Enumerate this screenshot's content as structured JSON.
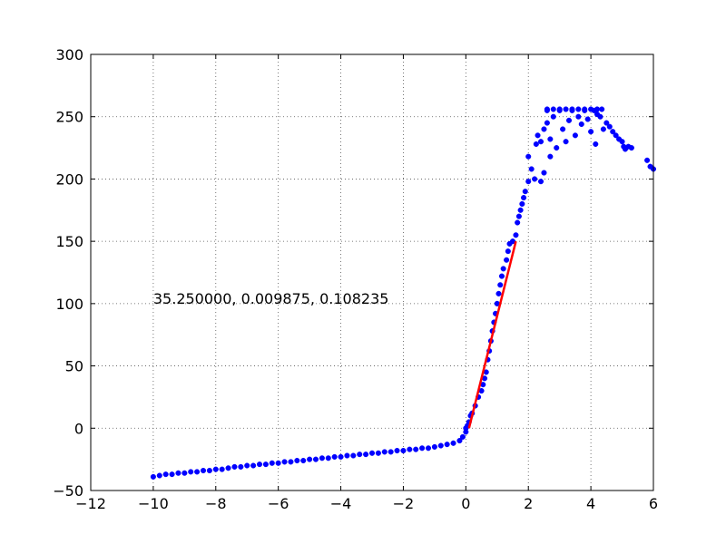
{
  "chart_data": {
    "type": "scatter",
    "title": "",
    "xlabel": "",
    "ylabel": "",
    "xlim": [
      -12,
      6
    ],
    "ylim": [
      -50,
      300
    ],
    "x_ticks": [
      -12,
      -10,
      -8,
      -6,
      -4,
      -2,
      0,
      2,
      4,
      6
    ],
    "y_ticks": [
      -50,
      0,
      50,
      100,
      150,
      200,
      250,
      300
    ],
    "x_tick_labels": [
      "−12",
      "−10",
      "−8",
      "−6",
      "−4",
      "−2",
      "0",
      "2",
      "4",
      "6"
    ],
    "y_tick_labels": [
      "−50",
      "0",
      "50",
      "100",
      "150",
      "200",
      "250",
      "300"
    ],
    "grid": true,
    "annotation": {
      "text": "35.250000, 0.009875, 0.108235",
      "x": -10,
      "y": 100
    },
    "colors": {
      "points": "#0000ff",
      "fit_line": "#ff0000",
      "grid": "#555555"
    },
    "series": [
      {
        "kind": "points",
        "points": [
          [
            -10.0,
            -39
          ],
          [
            -9.8,
            -38
          ],
          [
            -9.6,
            -37
          ],
          [
            -9.4,
            -37
          ],
          [
            -9.2,
            -36
          ],
          [
            -9.0,
            -36
          ],
          [
            -8.8,
            -35
          ],
          [
            -8.6,
            -35
          ],
          [
            -8.4,
            -34
          ],
          [
            -8.2,
            -34
          ],
          [
            -8.0,
            -33
          ],
          [
            -7.8,
            -33
          ],
          [
            -7.6,
            -32
          ],
          [
            -7.4,
            -31
          ],
          [
            -7.2,
            -31
          ],
          [
            -7.0,
            -30
          ],
          [
            -6.8,
            -30
          ],
          [
            -6.6,
            -29
          ],
          [
            -6.4,
            -29
          ],
          [
            -6.2,
            -28
          ],
          [
            -6.0,
            -28
          ],
          [
            -5.8,
            -27
          ],
          [
            -5.6,
            -27
          ],
          [
            -5.4,
            -26
          ],
          [
            -5.2,
            -26
          ],
          [
            -5.0,
            -25
          ],
          [
            -4.8,
            -25
          ],
          [
            -4.6,
            -24
          ],
          [
            -4.4,
            -24
          ],
          [
            -4.2,
            -23
          ],
          [
            -4.0,
            -23
          ],
          [
            -3.8,
            -22
          ],
          [
            -3.6,
            -22
          ],
          [
            -3.4,
            -21
          ],
          [
            -3.2,
            -21
          ],
          [
            -3.0,
            -20
          ],
          [
            -2.8,
            -20
          ],
          [
            -2.6,
            -19
          ],
          [
            -2.4,
            -19
          ],
          [
            -2.2,
            -18
          ],
          [
            -2.0,
            -18
          ],
          [
            -1.8,
            -17
          ],
          [
            -1.6,
            -17
          ],
          [
            -1.4,
            -16
          ],
          [
            -1.2,
            -16
          ],
          [
            -1.0,
            -15
          ],
          [
            -0.8,
            -14
          ],
          [
            -0.6,
            -13
          ],
          [
            -0.4,
            -12
          ],
          [
            -0.2,
            -10
          ],
          [
            -0.1,
            -7
          ],
          [
            0.0,
            -3
          ],
          [
            0.0,
            0
          ],
          [
            0.05,
            2
          ],
          [
            0.1,
            5
          ],
          [
            0.15,
            10
          ],
          [
            0.2,
            12
          ],
          [
            0.3,
            18
          ],
          [
            0.4,
            25
          ],
          [
            0.5,
            30
          ],
          [
            0.55,
            35
          ],
          [
            0.6,
            40
          ],
          [
            0.65,
            45
          ],
          [
            0.7,
            55
          ],
          [
            0.75,
            62
          ],
          [
            0.8,
            70
          ],
          [
            0.85,
            78
          ],
          [
            0.9,
            85
          ],
          [
            0.95,
            92
          ],
          [
            1.0,
            100
          ],
          [
            1.05,
            108
          ],
          [
            1.1,
            115
          ],
          [
            1.15,
            122
          ],
          [
            1.2,
            128
          ],
          [
            1.3,
            135
          ],
          [
            1.35,
            142
          ],
          [
            1.4,
            148
          ],
          [
            1.5,
            150
          ],
          [
            1.6,
            155
          ],
          [
            1.65,
            165
          ],
          [
            1.7,
            170
          ],
          [
            1.75,
            175
          ],
          [
            1.8,
            180
          ],
          [
            1.85,
            185
          ],
          [
            1.9,
            190
          ],
          [
            2.0,
            198
          ],
          [
            2.0,
            218
          ],
          [
            2.1,
            208
          ],
          [
            2.2,
            200
          ],
          [
            2.25,
            228
          ],
          [
            2.3,
            235
          ],
          [
            2.4,
            230
          ],
          [
            2.4,
            198
          ],
          [
            2.5,
            205
          ],
          [
            2.5,
            240
          ],
          [
            2.6,
            255
          ],
          [
            2.6,
            245
          ],
          [
            2.7,
            232
          ],
          [
            2.7,
            218
          ],
          [
            2.8,
            250
          ],
          [
            2.9,
            225
          ],
          [
            3.0,
            255
          ],
          [
            3.1,
            240
          ],
          [
            3.2,
            230
          ],
          [
            3.3,
            247
          ],
          [
            3.4,
            255
          ],
          [
            3.5,
            235
          ],
          [
            3.6,
            250
          ],
          [
            3.7,
            244
          ],
          [
            3.8,
            255
          ],
          [
            3.9,
            248
          ],
          [
            4.0,
            238
          ],
          [
            4.1,
            255
          ],
          [
            4.15,
            228
          ],
          [
            4.2,
            252
          ],
          [
            4.3,
            250
          ],
          [
            4.4,
            240
          ],
          [
            4.5,
            245
          ],
          [
            4.6,
            242
          ],
          [
            4.7,
            238
          ],
          [
            4.8,
            235
          ],
          [
            4.9,
            232
          ],
          [
            5.0,
            230
          ],
          [
            5.05,
            226
          ],
          [
            5.1,
            224
          ],
          [
            5.2,
            226
          ],
          [
            5.3,
            225
          ],
          [
            5.8,
            215
          ],
          [
            5.9,
            210
          ],
          [
            6.0,
            208
          ],
          [
            2.6,
            256
          ],
          [
            2.8,
            256
          ],
          [
            3.0,
            256
          ],
          [
            3.2,
            256
          ],
          [
            3.4,
            256
          ],
          [
            3.6,
            256
          ],
          [
            3.8,
            256
          ],
          [
            4.0,
            256
          ],
          [
            4.2,
            256
          ],
          [
            4.35,
            256
          ]
        ]
      },
      {
        "kind": "fit_line",
        "points": [
          [
            0.1,
            0
          ],
          [
            1.6,
            150
          ]
        ]
      }
    ]
  }
}
